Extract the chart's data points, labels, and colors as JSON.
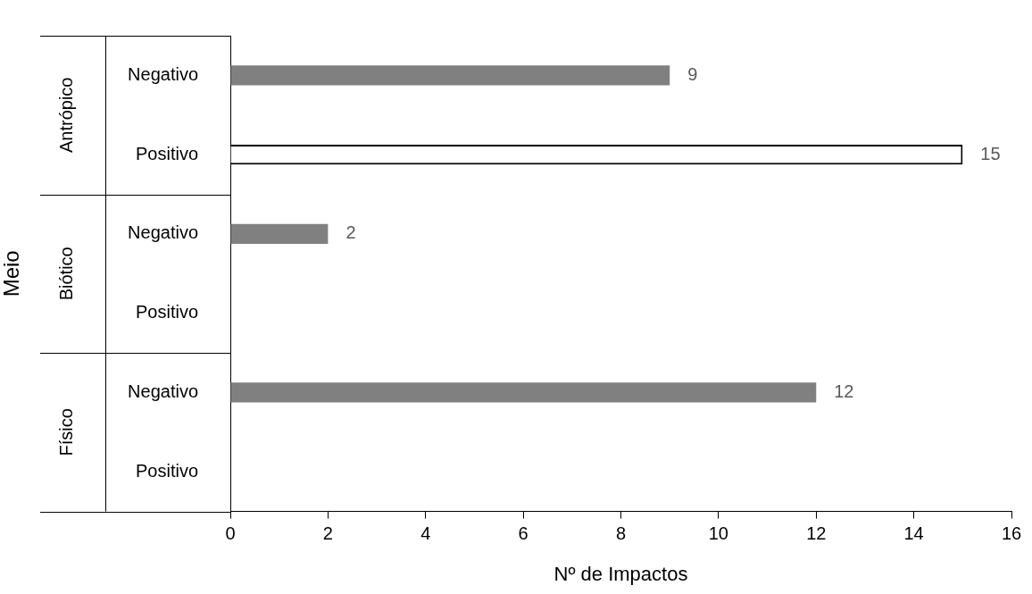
{
  "chart_data": {
    "type": "bar",
    "orientation": "horizontal",
    "categories": [
      "Negativo",
      "Positivo",
      "Negativo",
      "Positivo",
      "Negativo",
      "Positivo"
    ],
    "values": [
      9,
      15,
      2,
      null,
      12,
      null
    ],
    "colors": [
      "#808080",
      "#ffffff",
      "#808080",
      "#ffffff",
      "#808080",
      "#ffffff"
    ],
    "annotations": [
      "Antrópico",
      "Biótico",
      "Físico"
    ],
    "xlabel": "Nº de Impactos",
    "ylabel": "Meio",
    "xlim": [
      0,
      16
    ],
    "xticks": [
      0,
      2,
      4,
      6,
      8,
      10,
      12,
      14,
      16
    ],
    "data_labels": true,
    "grid": false,
    "legend": false
  }
}
